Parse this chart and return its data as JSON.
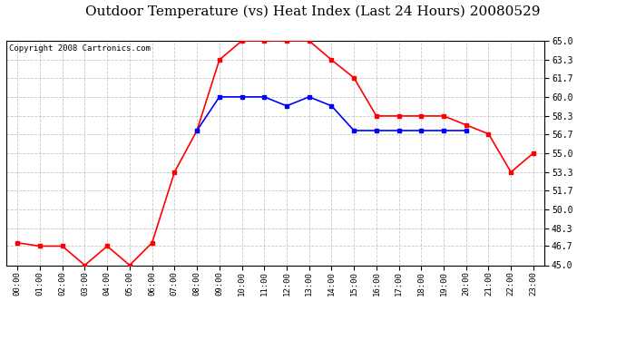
{
  "title": "Outdoor Temperature (vs) Heat Index (Last 24 Hours) 20080529",
  "copyright": "Copyright 2008 Cartronics.com",
  "hours": [
    "00:00",
    "01:00",
    "02:00",
    "03:00",
    "04:00",
    "05:00",
    "06:00",
    "07:00",
    "08:00",
    "09:00",
    "10:00",
    "11:00",
    "12:00",
    "13:00",
    "14:00",
    "15:00",
    "16:00",
    "17:00",
    "18:00",
    "19:00",
    "20:00",
    "21:00",
    "22:00",
    "23:00"
  ],
  "temp": [
    47.0,
    46.7,
    46.7,
    45.0,
    46.7,
    45.0,
    47.0,
    53.3,
    57.0,
    63.3,
    65.0,
    65.0,
    65.0,
    65.0,
    63.3,
    61.7,
    58.3,
    58.3,
    58.3,
    58.3,
    57.5,
    56.7,
    53.3,
    55.0
  ],
  "heat_index": [
    null,
    null,
    null,
    null,
    null,
    null,
    null,
    null,
    57.0,
    60.0,
    60.0,
    60.0,
    59.2,
    60.0,
    59.2,
    57.0,
    57.0,
    57.0,
    57.0,
    57.0,
    57.0,
    null,
    null,
    null
  ],
  "temp_color": "#FF0000",
  "heat_color": "#0000FF",
  "bg_color": "#FFFFFF",
  "grid_color": "#BBBBBB",
  "ymin": 45.0,
  "ymax": 65.0,
  "yticks": [
    45.0,
    46.7,
    48.3,
    50.0,
    51.7,
    53.3,
    55.0,
    56.7,
    58.3,
    60.0,
    61.7,
    63.3,
    65.0
  ],
  "title_fontsize": 11,
  "copyright_fontsize": 6.5,
  "marker": "s",
  "markersize": 3,
  "linewidth": 1.2
}
